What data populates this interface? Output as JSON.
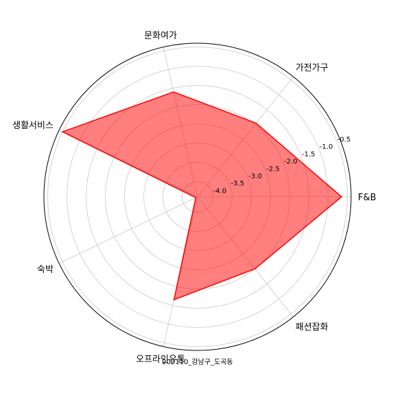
{
  "chart_data": {
    "type": "radar",
    "categories": [
      "F&B",
      "가전가구",
      "문화여가",
      "생활서비스",
      "숙박",
      "오프라인유통",
      "패션잡화"
    ],
    "values": [
      -0.65,
      -1.95,
      -1.6,
      -0.5,
      -4.35,
      -1.65,
      -2.0
    ],
    "rlim": [
      -4.4,
      -0.4
    ],
    "rticks": [
      -4.0,
      -3.5,
      -3.0,
      -2.5,
      -2.0,
      -1.5,
      -1.0,
      -0.5
    ],
    "rtick_labels": [
      "-4.0",
      "-3.5",
      "-3.0",
      "-2.5",
      "-2.0",
      "-1.5",
      "-1.0",
      "-0.5"
    ],
    "footer": "202110_강남구_도곡동",
    "grid": true,
    "colors": {
      "line": "#ff0000",
      "fill": "#ff0000",
      "grid": "#c8c8c8",
      "frame": "#000000"
    }
  }
}
